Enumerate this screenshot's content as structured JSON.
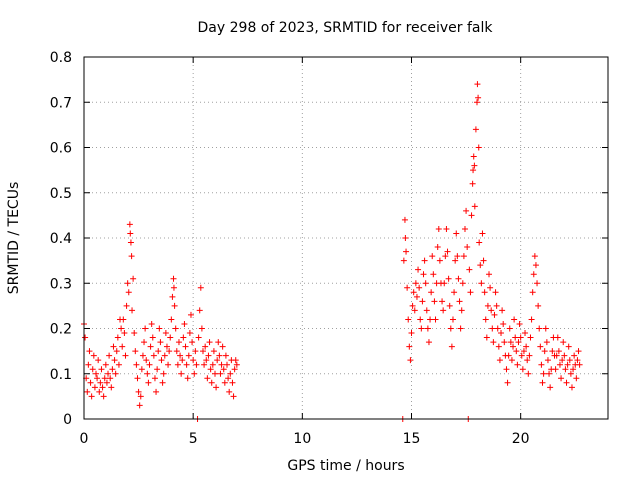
{
  "chart_data": {
    "type": "scatter",
    "title": "Day 298 of 2023, SRMTID for receiver falk",
    "xlabel": "GPS time / hours",
    "ylabel": "SRMTID / TECUs",
    "xlim": [
      0,
      24
    ],
    "ylim": [
      0,
      0.8
    ],
    "xticks": [
      0,
      5,
      10,
      15,
      20
    ],
    "yticks": [
      0,
      0.1,
      0.2,
      0.3,
      0.4,
      0.5,
      0.6,
      0.7,
      0.8
    ],
    "xtick_labels": [
      "0",
      "5",
      "10",
      "15",
      "20"
    ],
    "ytick_labels": [
      "0",
      "0.1",
      "0.2",
      "0.3",
      "0.4",
      "0.5",
      "0.6",
      "0.7",
      "0.8"
    ],
    "grid": true,
    "marker": "+",
    "color": "#ff0000",
    "series": [
      {
        "name": "SRMTID",
        "points": [
          [
            0.0,
            0.21
          ],
          [
            0.05,
            0.18
          ],
          [
            0.1,
            0.09
          ],
          [
            0.15,
            0.06
          ],
          [
            0.2,
            0.12
          ],
          [
            0.25,
            0.15
          ],
          [
            0.3,
            0.08
          ],
          [
            0.35,
            0.05
          ],
          [
            0.4,
            0.11
          ],
          [
            0.45,
            0.14
          ],
          [
            0.5,
            0.07
          ],
          [
            0.55,
            0.1
          ],
          [
            0.6,
            0.09
          ],
          [
            0.65,
            0.13
          ],
          [
            0.7,
            0.06
          ],
          [
            0.75,
            0.08
          ],
          [
            0.8,
            0.11
          ],
          [
            0.85,
            0.07
          ],
          [
            0.9,
            0.05
          ],
          [
            0.95,
            0.09
          ],
          [
            1.0,
            0.12
          ],
          [
            1.05,
            0.08
          ],
          [
            1.1,
            0.1
          ],
          [
            1.15,
            0.14
          ],
          [
            1.2,
            0.09
          ],
          [
            1.25,
            0.07
          ],
          [
            1.3,
            0.11
          ],
          [
            1.35,
            0.16
          ],
          [
            1.4,
            0.13
          ],
          [
            1.45,
            0.1
          ],
          [
            1.5,
            0.15
          ],
          [
            1.55,
            0.18
          ],
          [
            1.6,
            0.12
          ],
          [
            1.65,
            0.22
          ],
          [
            1.7,
            0.2
          ],
          [
            1.75,
            0.16
          ],
          [
            1.8,
            0.22
          ],
          [
            1.85,
            0.19
          ],
          [
            1.9,
            0.14
          ],
          [
            1.95,
            0.25
          ],
          [
            2.0,
            0.3
          ],
          [
            2.05,
            0.28
          ],
          [
            2.1,
            0.43
          ],
          [
            2.12,
            0.41
          ],
          [
            2.15,
            0.39
          ],
          [
            2.18,
            0.36
          ],
          [
            2.2,
            0.24
          ],
          [
            2.25,
            0.31
          ],
          [
            2.3,
            0.19
          ],
          [
            2.35,
            0.15
          ],
          [
            2.4,
            0.12
          ],
          [
            2.45,
            0.09
          ],
          [
            2.5,
            0.06
          ],
          [
            2.55,
            0.03
          ],
          [
            2.6,
            0.05
          ],
          [
            2.65,
            0.11
          ],
          [
            2.7,
            0.14
          ],
          [
            2.75,
            0.17
          ],
          [
            2.8,
            0.2
          ],
          [
            2.85,
            0.13
          ],
          [
            2.9,
            0.1
          ],
          [
            2.95,
            0.08
          ],
          [
            3.0,
            0.12
          ],
          [
            3.05,
            0.16
          ],
          [
            3.1,
            0.21
          ],
          [
            3.15,
            0.18
          ],
          [
            3.2,
            0.14
          ],
          [
            3.25,
            0.09
          ],
          [
            3.3,
            0.06
          ],
          [
            3.35,
            0.11
          ],
          [
            3.4,
            0.15
          ],
          [
            3.45,
            0.2
          ],
          [
            3.5,
            0.17
          ],
          [
            3.55,
            0.13
          ],
          [
            3.6,
            0.08
          ],
          [
            3.65,
            0.1
          ],
          [
            3.7,
            0.14
          ],
          [
            3.75,
            0.19
          ],
          [
            3.8,
            0.16
          ],
          [
            3.85,
            0.12
          ],
          [
            3.9,
            0.15
          ],
          [
            3.95,
            0.18
          ],
          [
            4.0,
            0.22
          ],
          [
            4.05,
            0.27
          ],
          [
            4.1,
            0.31
          ],
          [
            4.12,
            0.29
          ],
          [
            4.15,
            0.25
          ],
          [
            4.2,
            0.2
          ],
          [
            4.25,
            0.15
          ],
          [
            4.3,
            0.12
          ],
          [
            4.35,
            0.17
          ],
          [
            4.4,
            0.14
          ],
          [
            4.45,
            0.1
          ],
          [
            4.5,
            0.13
          ],
          [
            4.55,
            0.18
          ],
          [
            4.6,
            0.21
          ],
          [
            4.65,
            0.16
          ],
          [
            4.7,
            0.12
          ],
          [
            4.75,
            0.09
          ],
          [
            4.8,
            0.14
          ],
          [
            4.85,
            0.19
          ],
          [
            4.9,
            0.23
          ],
          [
            4.95,
            0.17
          ],
          [
            5.0,
            0.13
          ],
          [
            5.05,
            0.1
          ],
          [
            5.1,
            0.15
          ],
          [
            5.15,
            0.12
          ],
          [
            5.2,
            0.0
          ],
          [
            5.25,
            0.18
          ],
          [
            5.3,
            0.24
          ],
          [
            5.35,
            0.29
          ],
          [
            5.4,
            0.2
          ],
          [
            5.45,
            0.15
          ],
          [
            5.5,
            0.12
          ],
          [
            5.55,
            0.16
          ],
          [
            5.6,
            0.13
          ],
          [
            5.65,
            0.09
          ],
          [
            5.7,
            0.14
          ],
          [
            5.75,
            0.17
          ],
          [
            5.8,
            0.11
          ],
          [
            5.85,
            0.08
          ],
          [
            5.9,
            0.12
          ],
          [
            5.95,
            0.15
          ],
          [
            6.0,
            0.1
          ],
          [
            6.05,
            0.07
          ],
          [
            6.1,
            0.13
          ],
          [
            6.15,
            0.17
          ],
          [
            6.2,
            0.14
          ],
          [
            6.25,
            0.1
          ],
          [
            6.3,
            0.12
          ],
          [
            6.35,
            0.16
          ],
          [
            6.4,
            0.11
          ],
          [
            6.45,
            0.08
          ],
          [
            6.5,
            0.14
          ],
          [
            6.55,
            0.12
          ],
          [
            6.6,
            0.09
          ],
          [
            6.65,
            0.06
          ],
          [
            6.7,
            0.1
          ],
          [
            6.75,
            0.13
          ],
          [
            6.8,
            0.08
          ],
          [
            6.85,
            0.05
          ],
          [
            6.9,
            0.11
          ],
          [
            6.95,
            0.13
          ],
          [
            7.0,
            0.12
          ],
          [
            14.6,
            0.0
          ],
          [
            14.65,
            0.35
          ],
          [
            14.7,
            0.44
          ],
          [
            14.72,
            0.4
          ],
          [
            14.75,
            0.37
          ],
          [
            14.8,
            0.29
          ],
          [
            14.85,
            0.22
          ],
          [
            14.9,
            0.16
          ],
          [
            14.95,
            0.13
          ],
          [
            15.0,
            0.19
          ],
          [
            15.05,
            0.25
          ],
          [
            15.1,
            0.28
          ],
          [
            15.15,
            0.24
          ],
          [
            15.2,
            0.3
          ],
          [
            15.25,
            0.27
          ],
          [
            15.3,
            0.33
          ],
          [
            15.35,
            0.29
          ],
          [
            15.4,
            0.22
          ],
          [
            15.45,
            0.2
          ],
          [
            15.5,
            0.26
          ],
          [
            15.55,
            0.32
          ],
          [
            15.6,
            0.35
          ],
          [
            15.65,
            0.3
          ],
          [
            15.7,
            0.24
          ],
          [
            15.75,
            0.2
          ],
          [
            15.8,
            0.17
          ],
          [
            15.85,
            0.22
          ],
          [
            15.9,
            0.28
          ],
          [
            15.95,
            0.36
          ],
          [
            16.0,
            0.32
          ],
          [
            16.05,
            0.26
          ],
          [
            16.1,
            0.22
          ],
          [
            16.15,
            0.3
          ],
          [
            16.2,
            0.38
          ],
          [
            16.25,
            0.42
          ],
          [
            16.3,
            0.35
          ],
          [
            16.35,
            0.3
          ],
          [
            16.4,
            0.26
          ],
          [
            16.45,
            0.24
          ],
          [
            16.5,
            0.3
          ],
          [
            16.55,
            0.36
          ],
          [
            16.6,
            0.42
          ],
          [
            16.65,
            0.37
          ],
          [
            16.7,
            0.31
          ],
          [
            16.75,
            0.25
          ],
          [
            16.8,
            0.2
          ],
          [
            16.85,
            0.16
          ],
          [
            16.9,
            0.22
          ],
          [
            16.95,
            0.28
          ],
          [
            17.0,
            0.35
          ],
          [
            17.05,
            0.41
          ],
          [
            17.1,
            0.36
          ],
          [
            17.15,
            0.31
          ],
          [
            17.2,
            0.26
          ],
          [
            17.25,
            0.2
          ],
          [
            17.3,
            0.24
          ],
          [
            17.35,
            0.3
          ],
          [
            17.4,
            0.36
          ],
          [
            17.45,
            0.42
          ],
          [
            17.5,
            0.46
          ],
          [
            17.55,
            0.38
          ],
          [
            17.6,
            0.0
          ],
          [
            17.65,
            0.33
          ],
          [
            17.7,
            0.28
          ],
          [
            17.75,
            0.45
          ],
          [
            17.8,
            0.52
          ],
          [
            17.82,
            0.55
          ],
          [
            17.85,
            0.58
          ],
          [
            17.88,
            0.56
          ],
          [
            17.9,
            0.47
          ],
          [
            17.95,
            0.64
          ],
          [
            18.0,
            0.7
          ],
          [
            18.02,
            0.74
          ],
          [
            18.05,
            0.71
          ],
          [
            18.08,
            0.6
          ],
          [
            18.1,
            0.39
          ],
          [
            18.15,
            0.34
          ],
          [
            18.2,
            0.3
          ],
          [
            18.25,
            0.41
          ],
          [
            18.3,
            0.35
          ],
          [
            18.35,
            0.28
          ],
          [
            18.4,
            0.22
          ],
          [
            18.45,
            0.18
          ],
          [
            18.5,
            0.25
          ],
          [
            18.55,
            0.32
          ],
          [
            18.6,
            0.29
          ],
          [
            18.65,
            0.24
          ],
          [
            18.7,
            0.2
          ],
          [
            18.75,
            0.17
          ],
          [
            18.8,
            0.23
          ],
          [
            18.85,
            0.28
          ],
          [
            18.9,
            0.25
          ],
          [
            18.95,
            0.2
          ],
          [
            19.0,
            0.16
          ],
          [
            19.05,
            0.13
          ],
          [
            19.1,
            0.19
          ],
          [
            19.15,
            0.24
          ],
          [
            19.2,
            0.21
          ],
          [
            19.25,
            0.17
          ],
          [
            19.3,
            0.14
          ],
          [
            19.35,
            0.11
          ],
          [
            19.4,
            0.08
          ],
          [
            19.45,
            0.14
          ],
          [
            19.5,
            0.2
          ],
          [
            19.55,
            0.17
          ],
          [
            19.6,
            0.13
          ],
          [
            19.65,
            0.16
          ],
          [
            19.7,
            0.22
          ],
          [
            19.75,
            0.18
          ],
          [
            19.8,
            0.15
          ],
          [
            19.85,
            0.12
          ],
          [
            19.9,
            0.17
          ],
          [
            19.95,
            0.21
          ],
          [
            20.0,
            0.18
          ],
          [
            20.05,
            0.14
          ],
          [
            20.1,
            0.11
          ],
          [
            20.15,
            0.15
          ],
          [
            20.2,
            0.19
          ],
          [
            20.25,
            0.16
          ],
          [
            20.3,
            0.13
          ],
          [
            20.35,
            0.1
          ],
          [
            20.4,
            0.14
          ],
          [
            20.45,
            0.18
          ],
          [
            20.5,
            0.22
          ],
          [
            20.55,
            0.28
          ],
          [
            20.6,
            0.32
          ],
          [
            20.65,
            0.36
          ],
          [
            20.7,
            0.34
          ],
          [
            20.75,
            0.3
          ],
          [
            20.8,
            0.25
          ],
          [
            20.85,
            0.2
          ],
          [
            20.9,
            0.16
          ],
          [
            20.95,
            0.12
          ],
          [
            21.0,
            0.08
          ],
          [
            21.05,
            0.1
          ],
          [
            21.1,
            0.15
          ],
          [
            21.15,
            0.2
          ],
          [
            21.2,
            0.17
          ],
          [
            21.25,
            0.13
          ],
          [
            21.3,
            0.1
          ],
          [
            21.35,
            0.07
          ],
          [
            21.4,
            0.11
          ],
          [
            21.45,
            0.15
          ],
          [
            21.5,
            0.18
          ],
          [
            21.55,
            0.14
          ],
          [
            21.6,
            0.11
          ],
          [
            21.65,
            0.14
          ],
          [
            21.7,
            0.18
          ],
          [
            21.75,
            0.15
          ],
          [
            21.8,
            0.12
          ],
          [
            21.85,
            0.09
          ],
          [
            21.9,
            0.13
          ],
          [
            21.95,
            0.17
          ],
          [
            22.0,
            0.14
          ],
          [
            22.05,
            0.11
          ],
          [
            22.1,
            0.08
          ],
          [
            22.15,
            0.12
          ],
          [
            22.2,
            0.16
          ],
          [
            22.25,
            0.13
          ],
          [
            22.3,
            0.1
          ],
          [
            22.35,
            0.07
          ],
          [
            22.4,
            0.11
          ],
          [
            22.45,
            0.14
          ],
          [
            22.5,
            0.12
          ],
          [
            22.55,
            0.09
          ],
          [
            22.6,
            0.13
          ],
          [
            22.65,
            0.15
          ],
          [
            22.7,
            0.12
          ]
        ]
      }
    ]
  }
}
